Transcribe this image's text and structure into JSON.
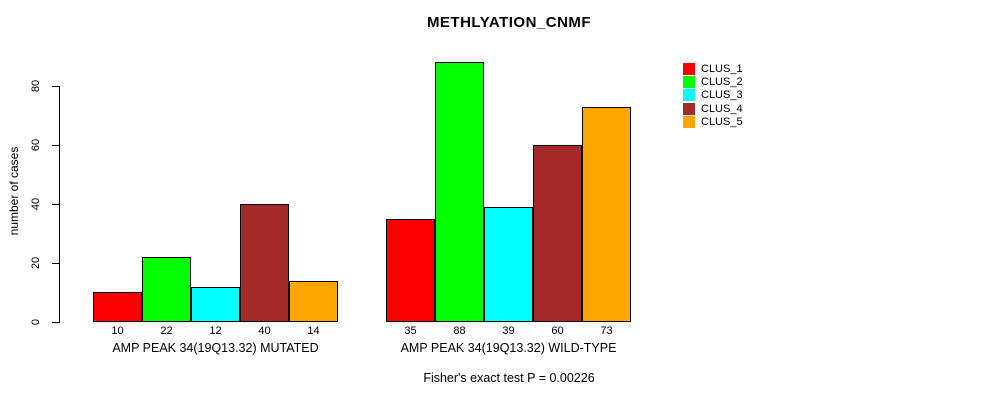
{
  "chart_data": {
    "type": "bar",
    "title": "METHLYATION_CNMF",
    "ylabel": "number of cases",
    "xlabel": "",
    "footnote": "Fisher's exact test P = 0.00226",
    "ylim": [
      0,
      80
    ],
    "yticks": [
      0,
      20,
      40,
      60,
      80
    ],
    "grid": false,
    "legend_position": "right",
    "categories": [
      "AMP PEAK 34(19Q13.32) MUTATED",
      "AMP PEAK 34(19Q13.32) WILD-TYPE"
    ],
    "series": [
      {
        "name": "CLUS_1",
        "color": "#FF0000",
        "values": [
          10,
          35
        ]
      },
      {
        "name": "CLUS_2",
        "color": "#00FF00",
        "values": [
          22,
          88
        ]
      },
      {
        "name": "CLUS_3",
        "color": "#00FFFF",
        "values": [
          12,
          39
        ]
      },
      {
        "name": "CLUS_4",
        "color": "#A52A2A",
        "values": [
          40,
          60
        ]
      },
      {
        "name": "CLUS_5",
        "color": "#FFA500",
        "values": [
          14,
          73
        ]
      }
    ],
    "colors": {
      "background": "#FFFFFF",
      "axis": "#000000",
      "bar_border": "#000000",
      "text": "#000000"
    }
  }
}
